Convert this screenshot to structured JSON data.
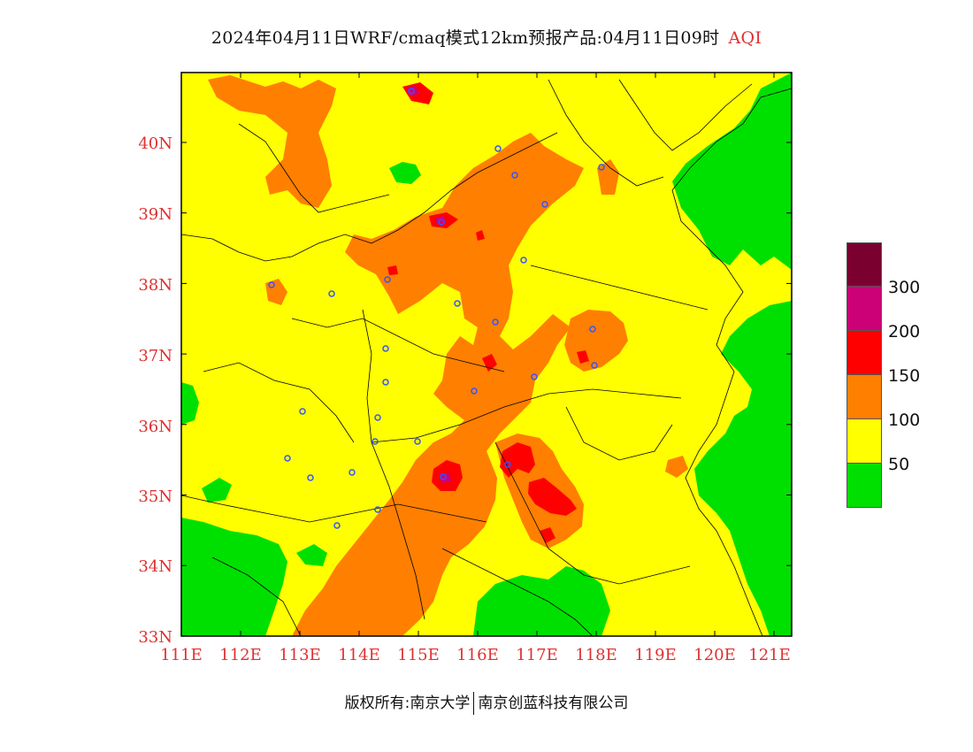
{
  "title": "2024年04月11日WRF/cmaq模式12km预报产品:04月11日09时",
  "title_variable": "AQI",
  "axis": {
    "lat_labels": [
      "40N",
      "39N",
      "38N",
      "37N",
      "36N",
      "35N",
      "34N",
      "33N"
    ],
    "lon_labels": [
      "111E",
      "112E",
      "113E",
      "114E",
      "115E",
      "116E",
      "117E",
      "118E",
      "119E",
      "120E",
      "121E"
    ],
    "label_color": "#e03030"
  },
  "legend": {
    "colors": [
      "#7a0030",
      "#cc0077",
      "#ff0000",
      "#ff7f00",
      "#ffff00",
      "#00e000"
    ],
    "labels": [
      "300",
      "200",
      "150",
      "100",
      "50"
    ]
  },
  "footer": {
    "left": "版权所有:南京大学",
    "right": "南京创蓝科技有限公司"
  },
  "colors": {
    "good": "#00e000",
    "moderate": "#ffff00",
    "usg": "#ff7f00",
    "unhealthy": "#ff0000",
    "very_unhealthy": "#cc0077",
    "hazardous": "#7a0030",
    "city_marker": "#3355ff"
  }
}
